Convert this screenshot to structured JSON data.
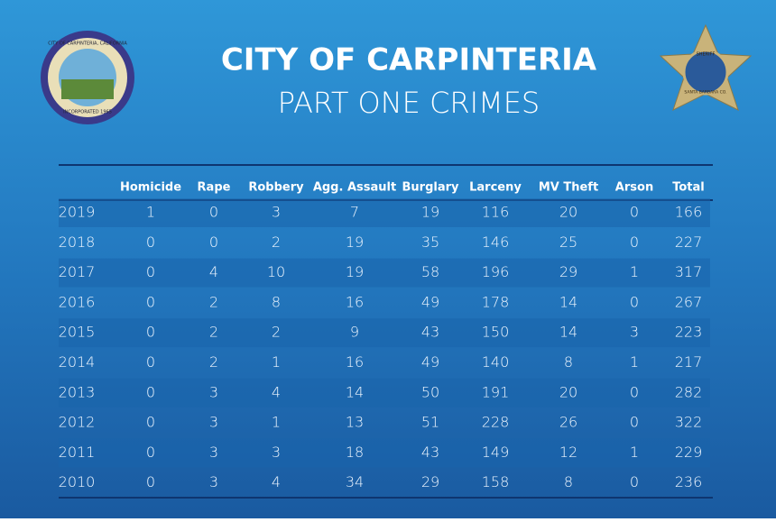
{
  "header": {
    "title": "CITY OF CARPINTERIA",
    "subtitle": "PART ONE CRIMES"
  },
  "seal": {
    "top_text": "CITY OF CARPINTERIA, CALIFORNIA",
    "bottom_text": "INCORPORATED 1965"
  },
  "badge": {
    "top_text": "SHERIFF",
    "bottom_text": "SANTA BARBARA CO."
  },
  "table": {
    "columns": [
      "Homicide",
      "Rape",
      "Robbery",
      "Agg. Assault",
      "Burglary",
      "Larceny",
      "MV Theft",
      "Arson",
      "Total"
    ],
    "rows": [
      [
        2019,
        1,
        0,
        3,
        7,
        19,
        116,
        20,
        0,
        166
      ],
      [
        2018,
        0,
        0,
        2,
        19,
        35,
        146,
        25,
        0,
        227
      ],
      [
        2017,
        0,
        4,
        10,
        19,
        58,
        196,
        29,
        1,
        317
      ],
      [
        2016,
        0,
        2,
        8,
        16,
        49,
        178,
        14,
        0,
        267
      ],
      [
        2015,
        0,
        2,
        2,
        9,
        43,
        150,
        14,
        3,
        223
      ],
      [
        2014,
        0,
        2,
        1,
        16,
        49,
        140,
        8,
        1,
        217
      ],
      [
        2013,
        0,
        3,
        4,
        14,
        50,
        191,
        20,
        0,
        282
      ],
      [
        2012,
        0,
        3,
        1,
        13,
        51,
        228,
        26,
        0,
        322
      ],
      [
        2011,
        0,
        3,
        3,
        18,
        43,
        149,
        12,
        1,
        229
      ],
      [
        2010,
        0,
        3,
        4,
        34,
        29,
        158,
        8,
        0,
        236
      ]
    ]
  }
}
